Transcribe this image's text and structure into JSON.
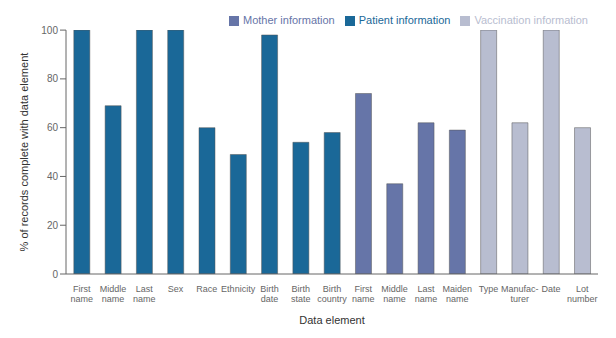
{
  "chart_data": {
    "type": "bar",
    "xlabel": "Data element",
    "ylabel": "% of records complete with data element",
    "categories": [
      "First\nname",
      "Middle\nname",
      "Last\nname",
      "Sex",
      "Race",
      "Ethnicity",
      "Birth\ndate",
      "Birth\nstate",
      "Birth\ncountry",
      "First\nname",
      "Middle\nname",
      "Last\nname",
      "Maiden\nname",
      "Type",
      "Manufac-\nturer",
      "Date",
      "Lot\nnumber"
    ],
    "series": [
      {
        "name": "Patient information",
        "color": "#1a6898",
        "values": [
          100,
          69,
          100,
          100,
          60,
          49,
          98,
          54,
          58,
          null,
          null,
          null,
          null,
          null,
          null,
          null,
          null
        ]
      },
      {
        "name": "Mother information",
        "color": "#6675a8",
        "values": [
          null,
          null,
          null,
          null,
          null,
          null,
          null,
          null,
          null,
          74,
          37,
          62,
          59,
          null,
          null,
          null,
          null
        ]
      },
      {
        "name": "Vaccination information",
        "color": "#b8bdd0",
        "values": [
          null,
          null,
          null,
          null,
          null,
          null,
          null,
          null,
          null,
          null,
          null,
          null,
          null,
          100,
          62,
          100,
          60
        ]
      }
    ],
    "stacked": true,
    "ylim": [
      0,
      100
    ],
    "yticks": [
      0,
      20,
      40,
      60,
      80,
      100
    ],
    "grid": false,
    "legend": "upper right"
  }
}
